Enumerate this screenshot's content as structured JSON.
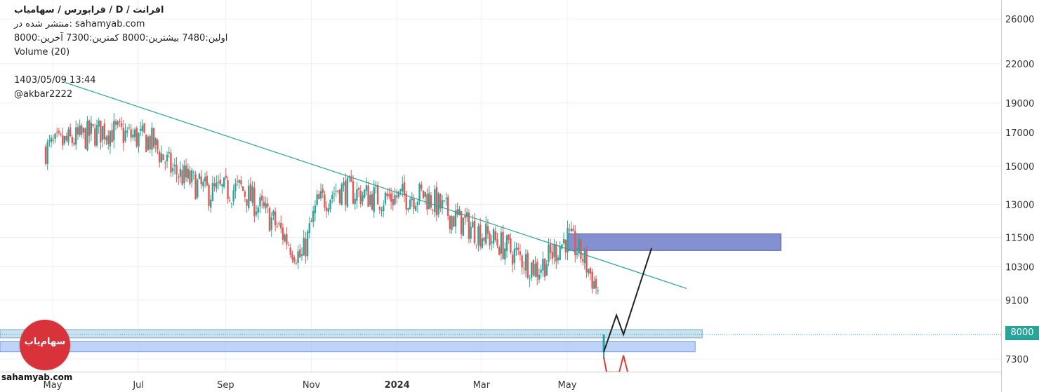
{
  "header": {
    "title": "افرانت / D / فرابورس / سهامیاب",
    "published": "منتشر شده در: sahamyab.com",
    "ohlc": "اولین:7480 بیشترین:8000 کمترین:7300 آخرین:8000",
    "volume": "Volume (20)",
    "date": "1403/05/09 13:44",
    "author": "@akbar2222"
  },
  "watermark": {
    "site": "sahamyab.com",
    "logo_text": "سهام‌یاب"
  },
  "last_price": "8000",
  "colors": {
    "up": "#26a69a",
    "down": "#ef5350",
    "trendline": "#26a69a",
    "resistance_zone": "#5c6bc0",
    "support_zone_1": "#b3d4e8",
    "support_zone_2": "#a9c4f5",
    "projection": "#222222",
    "projection_down": "#e53935",
    "logo": "#d8333a"
  },
  "chart_data": {
    "type": "candlestick",
    "y_scale": "log",
    "ylim": [
      7000,
      27000
    ],
    "y_ticks": [
      26000,
      22000,
      19000,
      17000,
      15000,
      13000,
      11500,
      10300,
      9100,
      8000,
      7300
    ],
    "x_ticks": [
      "May",
      "Jul",
      "Sep",
      "Nov",
      "2024",
      "Mar",
      "May"
    ],
    "last_price": 8000,
    "trend": [
      {
        "date": "2023-04-26",
        "price": 16000
      },
      {
        "date": "2023-06-07",
        "price": 17200
      },
      {
        "date": "2023-07-10",
        "price": 16500
      },
      {
        "date": "2023-07-25",
        "price": 14800
      },
      {
        "date": "2023-08-20",
        "price": 13600
      },
      {
        "date": "2023-09-12",
        "price": 13800
      },
      {
        "date": "2023-10-05",
        "price": 12200
      },
      {
        "date": "2023-10-25",
        "price": 10600
      },
      {
        "date": "2023-11-05",
        "price": 13000
      },
      {
        "date": "2023-11-20",
        "price": 13800
      },
      {
        "date": "2023-12-20",
        "price": 13300
      },
      {
        "date": "2024-01-20",
        "price": 13500
      },
      {
        "date": "2024-02-10",
        "price": 12400
      },
      {
        "date": "2024-03-15",
        "price": 11200
      },
      {
        "date": "2024-04-10",
        "price": 10200
      },
      {
        "date": "2024-05-01",
        "price": 11500
      },
      {
        "date": "2024-05-12",
        "price": 10700
      },
      {
        "date": "2024-05-24",
        "price": 9300
      }
    ],
    "last_candle": {
      "date": "2024-05-27",
      "open": 7480,
      "high": 8000,
      "low": 7300,
      "close": 8000
    },
    "trendline": [
      {
        "date": "2023-05-10",
        "price": 20500
      },
      {
        "date": "2024-07-25",
        "price": 9500
      }
    ],
    "zones": [
      {
        "name": "resistance",
        "from_date": "2024-05-01",
        "to_date": "2024-09-30",
        "low": 10950,
        "high": 11650
      },
      {
        "name": "support-upper",
        "from_date": "2023-01-01",
        "to_date": "2024-08-05",
        "low": 7900,
        "high": 8150
      },
      {
        "name": "support-lower",
        "from_date": "2023-01-01",
        "to_date": "2024-07-31",
        "low": 7500,
        "high": 7800
      }
    ],
    "projection": [
      {
        "date": "2024-05-27",
        "price": 7500
      },
      {
        "date": "2024-06-05",
        "price": 8600
      },
      {
        "date": "2024-06-10",
        "price": 8000
      },
      {
        "date": "2024-06-30",
        "price": 11050
      }
    ],
    "projection_down": [
      {
        "date": "2024-05-27",
        "price": 7350
      },
      {
        "date": "2024-05-29",
        "price": 6950
      },
      {
        "date": "2024-06-07",
        "price": 6950
      },
      {
        "date": "2024-06-10",
        "price": 7400
      },
      {
        "date": "2024-06-13",
        "price": 6950
      }
    ]
  }
}
